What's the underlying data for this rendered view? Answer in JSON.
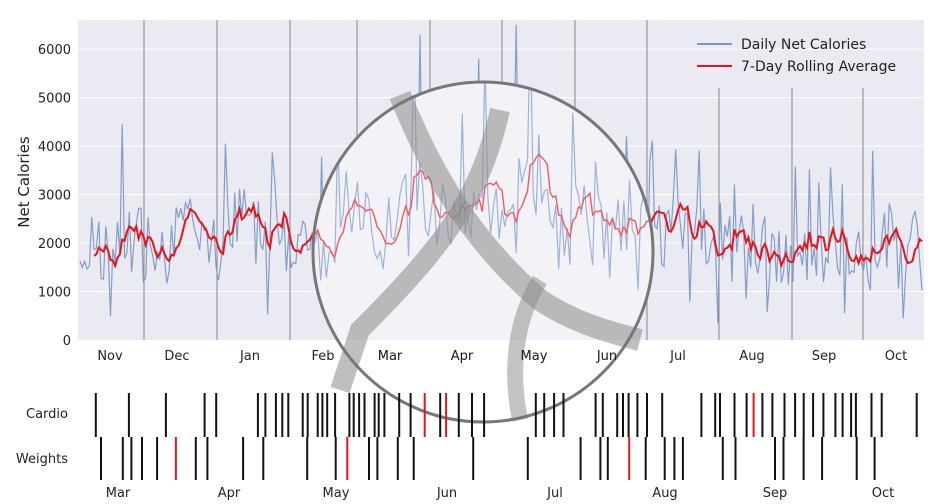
{
  "chart_data": [
    {
      "type": "line",
      "ylabel": "Net Calories",
      "ylim": [
        0,
        6600
      ],
      "yticks": [
        "0",
        "1000",
        "2000",
        "3000",
        "4000",
        "5000",
        "6000"
      ],
      "xticks": [
        "Nov",
        "Dec",
        "Jan",
        "Feb",
        "Mar",
        "Apr",
        "May",
        "Jun",
        "Jul",
        "Aug",
        "Sep",
        "Oct"
      ],
      "grid": true,
      "legend_position": "top-right",
      "series": [
        {
          "name": "Daily Net Calories",
          "color": "#7b95c4"
        },
        {
          "name": "7-Day Rolling Average",
          "color": "#e8141b"
        }
      ],
      "daily_baseline": [
        1600,
        1500,
        1750,
        1800,
        1950,
        2150,
        2300,
        2250,
        2300,
        2150,
        2000,
        2000,
        2200,
        2250,
        2100,
        2200,
        2400,
        2300,
        2500,
        2350,
        2200,
        2150,
        2050,
        2250,
        2200,
        2150,
        2050,
        2050,
        2100,
        2150,
        2300,
        2600,
        2350,
        2400,
        2250,
        2400,
        2700,
        2900,
        3100,
        2700,
        2500,
        2400,
        2700,
        2550,
        2500,
        2800,
        3000,
        3300,
        3000,
        2600,
        2300,
        2500,
        2700,
        2400,
        2150,
        2500,
        2550,
        2600,
        2600,
        2500,
        2550,
        2450,
        2450,
        2350,
        2350,
        2300,
        2200,
        2250,
        2100,
        2100,
        2100,
        2050,
        2050,
        2000,
        1950,
        2050,
        1900,
        1850,
        1950,
        1800,
        1800,
        1850,
        2000,
        1850,
        1800,
        1900,
        1800,
        2000,
        2000,
        2100,
        2050,
        1700
      ],
      "spikes": [
        {
          "month": "Feb",
          "value": 4150
        },
        {
          "month": "Mar",
          "value": 6300
        },
        {
          "month": "Apr",
          "value": 5800
        },
        {
          "month": "Apr",
          "value": 6500
        },
        {
          "month": "Jun",
          "value": 4200
        },
        {
          "month": "Oct",
          "value": 3900
        }
      ]
    },
    {
      "type": "event-raster",
      "rows": [
        "Cardio",
        "Weights"
      ],
      "xticks": [
        "Mar",
        "Apr",
        "May",
        "Jun",
        "Jul",
        "Aug",
        "Sep",
        "Oct"
      ],
      "colors": {
        "normal": "#111111",
        "highlight": "#e8141b"
      }
    }
  ],
  "magnifier": {
    "zoom_ticks": [
      "Mar",
      "Apr",
      "May",
      "Jun"
    ]
  }
}
